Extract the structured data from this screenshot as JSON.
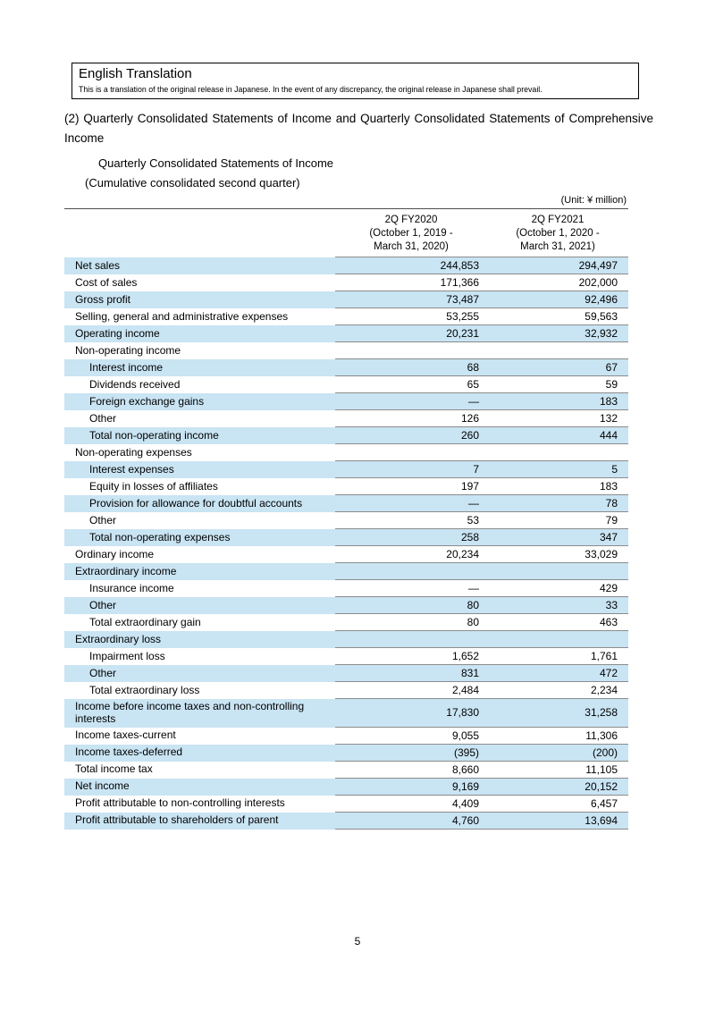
{
  "translation_box": {
    "title": "English Translation",
    "body": "This is a translation of the original release in Japanese. In the event of any discrepancy, the original release in Japanese shall prevail."
  },
  "section_heading": "(2) Quarterly Consolidated Statements of Income and Quarterly Consolidated Statements of Comprehensive Income",
  "statement_title": "Quarterly Consolidated Statements of Income",
  "statement_subtitle": "(Cumulative consolidated second quarter)",
  "unit_note": "(Unit: ¥ million)",
  "table": {
    "columns": [
      {
        "title": "2Q FY2020",
        "period_line1": "(October 1, 2019 -",
        "period_line2": "March 31, 2020)"
      },
      {
        "title": "2Q FY2021",
        "period_line1": "(October 1, 2020 -",
        "period_line2": "March 31, 2021)"
      }
    ],
    "rows": [
      {
        "label": "Net sales",
        "indent": 0,
        "fy2020": "244,853",
        "fy2021": "294,497"
      },
      {
        "label": "Cost of sales",
        "indent": 0,
        "fy2020": "171,366",
        "fy2021": "202,000"
      },
      {
        "label": "Gross profit",
        "indent": 0,
        "fy2020": "73,487",
        "fy2021": "92,496"
      },
      {
        "label": "Selling, general and administrative expenses",
        "indent": 0,
        "fy2020": "53,255",
        "fy2021": "59,563"
      },
      {
        "label": "Operating income",
        "indent": 0,
        "fy2020": "20,231",
        "fy2021": "32,932"
      },
      {
        "label": "Non-operating income",
        "indent": 0,
        "fy2020": "",
        "fy2021": ""
      },
      {
        "label": "Interest income",
        "indent": 1,
        "fy2020": "68",
        "fy2021": "67"
      },
      {
        "label": "Dividends received",
        "indent": 1,
        "fy2020": "65",
        "fy2021": "59"
      },
      {
        "label": "Foreign exchange gains",
        "indent": 1,
        "fy2020": "—",
        "fy2021": "183"
      },
      {
        "label": "Other",
        "indent": 1,
        "fy2020": "126",
        "fy2021": "132"
      },
      {
        "label": "Total non-operating income",
        "indent": 1,
        "fy2020": "260",
        "fy2021": "444"
      },
      {
        "label": "Non-operating expenses",
        "indent": 0,
        "fy2020": "",
        "fy2021": ""
      },
      {
        "label": "Interest expenses",
        "indent": 1,
        "fy2020": "7",
        "fy2021": "5"
      },
      {
        "label": "Equity in losses of affiliates",
        "indent": 1,
        "fy2020": "197",
        "fy2021": "183"
      },
      {
        "label": "Provision for allowance for doubtful accounts",
        "indent": 1,
        "fy2020": "—",
        "fy2021": "78"
      },
      {
        "label": "Other",
        "indent": 1,
        "fy2020": "53",
        "fy2021": "79"
      },
      {
        "label": "Total non-operating expenses",
        "indent": 1,
        "fy2020": "258",
        "fy2021": "347"
      },
      {
        "label": "Ordinary income",
        "indent": 0,
        "fy2020": "20,234",
        "fy2021": "33,029"
      },
      {
        "label": "Extraordinary income",
        "indent": 0,
        "fy2020": "",
        "fy2021": ""
      },
      {
        "label": "Insurance income",
        "indent": 1,
        "fy2020": "—",
        "fy2021": "429"
      },
      {
        "label": "Other",
        "indent": 1,
        "fy2020": "80",
        "fy2021": "33"
      },
      {
        "label": "Total extraordinary gain",
        "indent": 1,
        "fy2020": "80",
        "fy2021": "463"
      },
      {
        "label": "Extraordinary loss",
        "indent": 0,
        "fy2020": "",
        "fy2021": ""
      },
      {
        "label": "Impairment loss",
        "indent": 1,
        "fy2020": "1,652",
        "fy2021": "1,761"
      },
      {
        "label": "Other",
        "indent": 1,
        "fy2020": "831",
        "fy2021": "472"
      },
      {
        "label": "Total extraordinary loss",
        "indent": 1,
        "fy2020": "2,484",
        "fy2021": "2,234"
      },
      {
        "label": "Income before income taxes and non-controlling interests",
        "indent": 0,
        "fy2020": "17,830",
        "fy2021": "31,258",
        "tall": true
      },
      {
        "label": "Income taxes-current",
        "indent": 0,
        "fy2020": "9,055",
        "fy2021": "11,306"
      },
      {
        "label": "Income taxes-deferred",
        "indent": 0,
        "fy2020": "(395)",
        "fy2021": "(200)"
      },
      {
        "label": "Total income tax",
        "indent": 0,
        "fy2020": "8,660",
        "fy2021": "11,105"
      },
      {
        "label": "Net income",
        "indent": 0,
        "fy2020": "9,169",
        "fy2021": "20,152"
      },
      {
        "label": "Profit attributable to non-controlling interests",
        "indent": 0,
        "fy2020": "4,409",
        "fy2021": "6,457"
      },
      {
        "label": "Profit attributable to shareholders of parent",
        "indent": 0,
        "fy2020": "4,760",
        "fy2021": "13,694"
      }
    ]
  },
  "page_number": "5"
}
